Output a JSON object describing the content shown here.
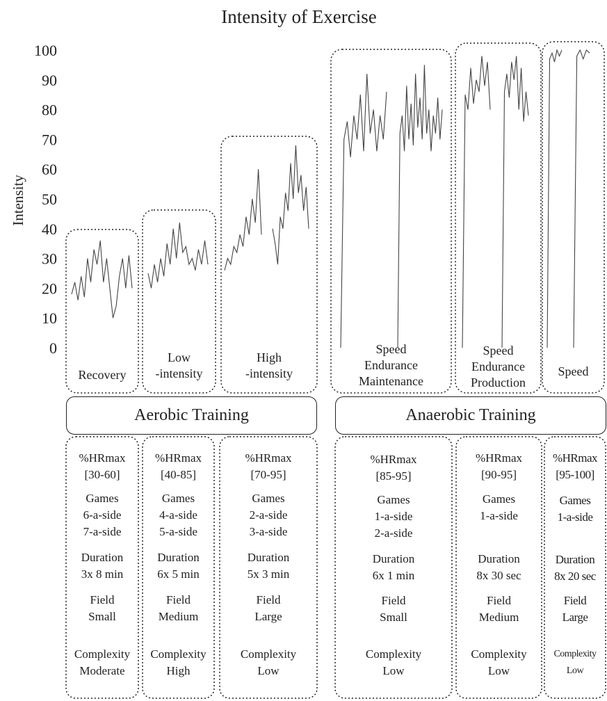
{
  "title": "Intensity of Exercise",
  "ylabel": "Intensity",
  "y_ticks": [
    "100",
    "90",
    "80",
    "70",
    "60",
    "50",
    "40",
    "30",
    "20",
    "10",
    "0"
  ],
  "zones": [
    {
      "label": "Recovery"
    },
    {
      "label": "Low\n-intensity"
    },
    {
      "label": "High\n-intensity"
    },
    {
      "label": "Speed\nEndurance\nMaintenance"
    },
    {
      "label": "Speed\nEndurance\nProduction"
    },
    {
      "label": "Speed"
    }
  ],
  "groups": {
    "aerobic": "Aerobic Training",
    "anaerobic": "Anaerobic Training"
  },
  "details": [
    {
      "hr": "%HRmax\n[30-60]",
      "games": "Games\n6-a-side\n7-a-side",
      "duration": "Duration\n3x 8 min",
      "field": "Field\nSmall",
      "complexity": "Complexity\nModerate"
    },
    {
      "hr": "%HRmax\n[40-85]",
      "games": "Games\n4-a-side\n5-a-side",
      "duration": "Duration\n6x 5 min",
      "field": "Field\nMedium",
      "complexity": "Complexity\nHigh"
    },
    {
      "hr": "%HRmax\n[70-95]",
      "games": "Games\n2-a-side\n3-a-side",
      "duration": "Duration\n5x 3 min",
      "field": "Field\nLarge",
      "complexity": "Complexity\nLow"
    },
    {
      "hr": "%HRmax\n[85-95]",
      "games": "Games\n1-a-side\n2-a-side",
      "duration": "Duration\n6x 1 min",
      "field": "Field\nSmall",
      "complexity": "Complexity\nLow"
    },
    {
      "hr": "%HRmax\n[90-95]",
      "games": "Games\n1-a-side",
      "duration": "Duration\n8x 30 sec",
      "field": "Field\nMedium",
      "complexity": "Complexity\nLow"
    },
    {
      "hr": "%HRmax\n[95-100]",
      "games": "Games\n1-a-side",
      "duration": "Duration\n8x 20 sec",
      "field": "Field\nLarge",
      "complexity": "Complexity\nLow"
    }
  ],
  "traces": [
    [
      [
        18,
        22,
        16,
        24,
        17,
        30,
        22,
        33,
        28,
        36,
        22,
        30,
        20,
        10,
        14,
        24,
        30,
        20,
        31,
        20
      ]
    ],
    [
      [
        25,
        20,
        28,
        22,
        30,
        24,
        35,
        28,
        40,
        30,
        42,
        32,
        34,
        28,
        30,
        26,
        33,
        28,
        36,
        28
      ]
    ],
    [
      [
        26,
        30,
        28,
        34,
        32,
        38,
        34,
        44,
        38,
        50,
        42,
        60,
        38
      ],
      [
        40,
        35,
        28,
        44,
        40,
        52,
        46,
        62,
        50,
        68,
        52,
        58,
        46,
        54,
        40
      ]
    ],
    [
      [
        0,
        70,
        76,
        64,
        78,
        70,
        85,
        66,
        92,
        72,
        80,
        66,
        78,
        70,
        86
      ],
      [
        0,
        72,
        78,
        66,
        88,
        70,
        82,
        68,
        92,
        74,
        84,
        70,
        95,
        72,
        80,
        66,
        78,
        72,
        84,
        70,
        80
      ]
    ],
    [
      [
        0,
        85,
        80,
        94,
        82,
        90,
        86,
        98,
        88,
        96,
        80
      ],
      [
        0,
        86,
        92,
        84,
        96,
        90,
        98,
        80,
        94,
        76,
        86,
        78
      ]
    ],
    [
      [
        0,
        97,
        99,
        96,
        100,
        98,
        100
      ],
      [
        0,
        98,
        100,
        97,
        100,
        99
      ]
    ]
  ]
}
